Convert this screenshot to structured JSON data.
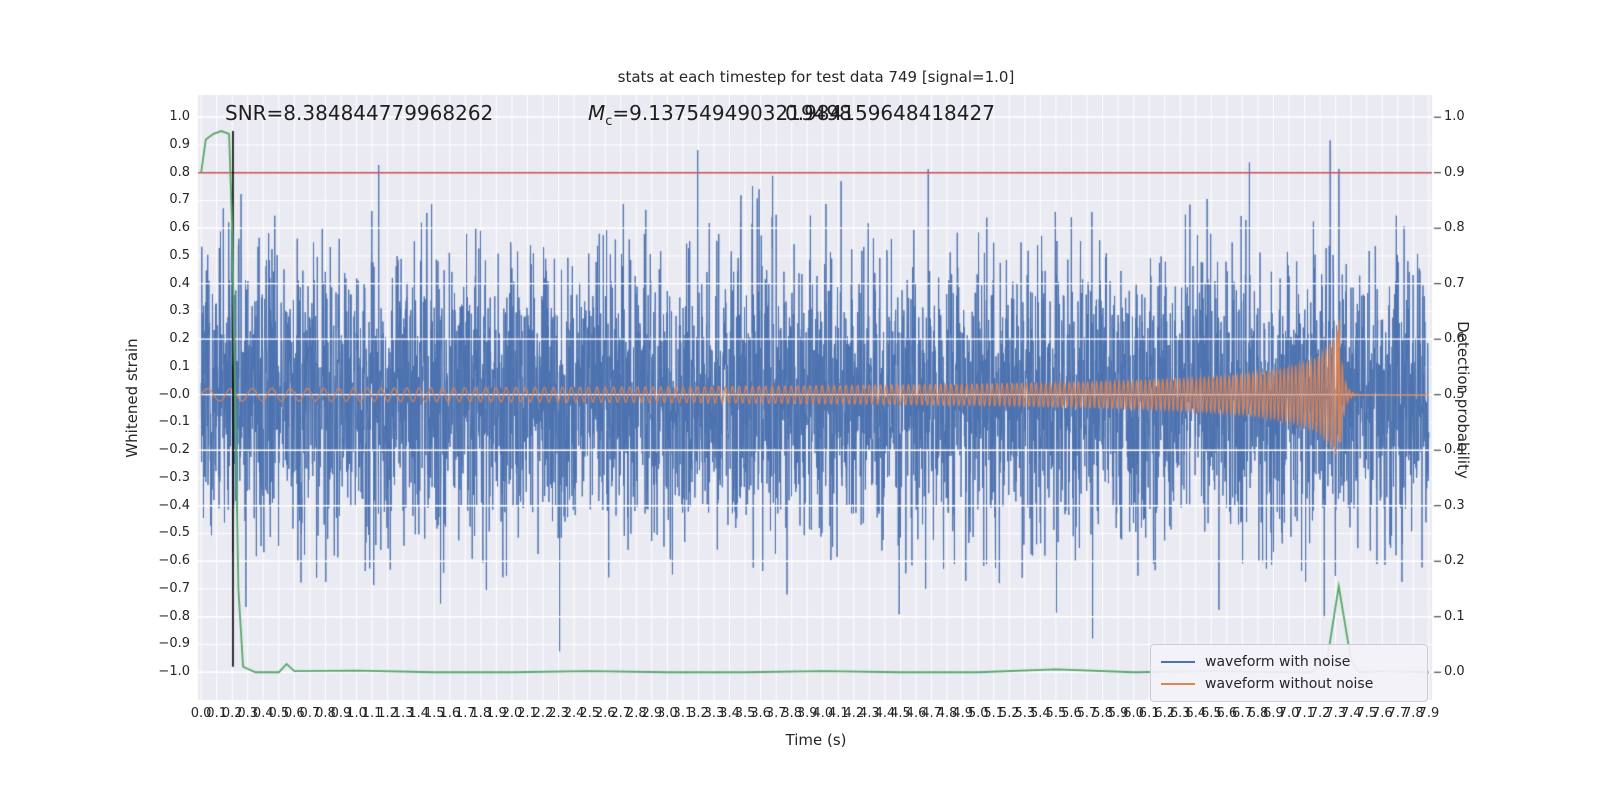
{
  "chart_data": {
    "type": "line",
    "title": "stats at each timestep for test data 749 [signal=1.0]",
    "xlabel": "Time (s)",
    "ylabel_left": "Whitened strain",
    "ylabel_right": "Detection probability",
    "xlim": [
      -0.02,
      7.92
    ],
    "ylim_left": [
      -1.1,
      1.08
    ],
    "right_axis_map": "strain = 2*probability - 1",
    "x_ticks": {
      "start": 0.0,
      "end": 7.9,
      "step": 0.1,
      "decimals": 1
    },
    "y_ticks_left": {
      "start": -1.0,
      "end": 1.0,
      "step": 0.1,
      "decimals": 1
    },
    "y_ticks_right": {
      "start": 0.0,
      "end": 1.0,
      "step": 0.1,
      "decimals": 1
    },
    "axes_background": "#eaeaf2",
    "grid": {
      "minor_step_x": 0.1,
      "minor_step_y": 0.1,
      "overlay_step_y": 0.2,
      "color": "#ffffff"
    },
    "threshold_line": {
      "axis": "right",
      "value": 0.9,
      "color": "#c44e52"
    },
    "event_line": {
      "x": 0.205,
      "from_strain": -0.98,
      "to_strain": 0.95,
      "color": "#000000"
    },
    "series": [
      {
        "name": "waveform with noise",
        "color": "#4c72b0",
        "kind": "noise_plus_signal",
        "points_count": 5200,
        "noise_std": 0.25,
        "seed": 749,
        "clip": 0.97
      },
      {
        "name": "waveform without noise",
        "color": "#dd8452",
        "kind": "chirp",
        "merger_time": 7.32,
        "amp_coeff": 0.06,
        "amp_floor": 0.055,
        "amp_max": 0.3,
        "freq_start": 6,
        "freq_end": 42,
        "ringdown_amp": 0.28,
        "ringdown_tau": 0.025,
        "ringdown_freq": 45,
        "t_start": 0.0,
        "t_end": 7.9
      },
      {
        "name": "detection probability",
        "color": "#55a868",
        "axis": "right",
        "points": [
          [
            0,
            0.9
          ],
          [
            0.03,
            0.96
          ],
          [
            0.08,
            0.97
          ],
          [
            0.13,
            0.975
          ],
          [
            0.18,
            0.97
          ],
          [
            0.2,
            0.8
          ],
          [
            0.24,
            0.15
          ],
          [
            0.27,
            0.01
          ],
          [
            0.35,
            0
          ],
          [
            0.5,
            0
          ],
          [
            0.55,
            0.015
          ],
          [
            0.6,
            0.002
          ],
          [
            1,
            0.003
          ],
          [
            1.5,
            0
          ],
          [
            2,
            0
          ],
          [
            2.5,
            0.002
          ],
          [
            3,
            0
          ],
          [
            3.5,
            0
          ],
          [
            4,
            0.002
          ],
          [
            4.5,
            0
          ],
          [
            5,
            0
          ],
          [
            5.5,
            0.005
          ],
          [
            6,
            0
          ],
          [
            6.5,
            0.002
          ],
          [
            7,
            0
          ],
          [
            7.15,
            0
          ],
          [
            7.25,
            0.03
          ],
          [
            7.32,
            0.155
          ],
          [
            7.4,
            0.02
          ],
          [
            7.45,
            0
          ],
          [
            7.6,
            0.002
          ],
          [
            7.9,
            0
          ]
        ]
      }
    ],
    "legend": {
      "position": "lower right",
      "items": [
        {
          "label": "waveform with noise",
          "color": "#4c72b0"
        },
        {
          "label": "waveform without noise",
          "color": "#dd8452"
        }
      ]
    }
  },
  "annotations": {
    "snr": "SNR=8.384844779968262",
    "mc_m": "M",
    "mc_sub": "c",
    "mc_rest": "=9.1375494903219498",
    "overlap_value": "0.984159648418427"
  },
  "colors": {
    "figure_bg": "#ffffff",
    "text": "#262626"
  }
}
